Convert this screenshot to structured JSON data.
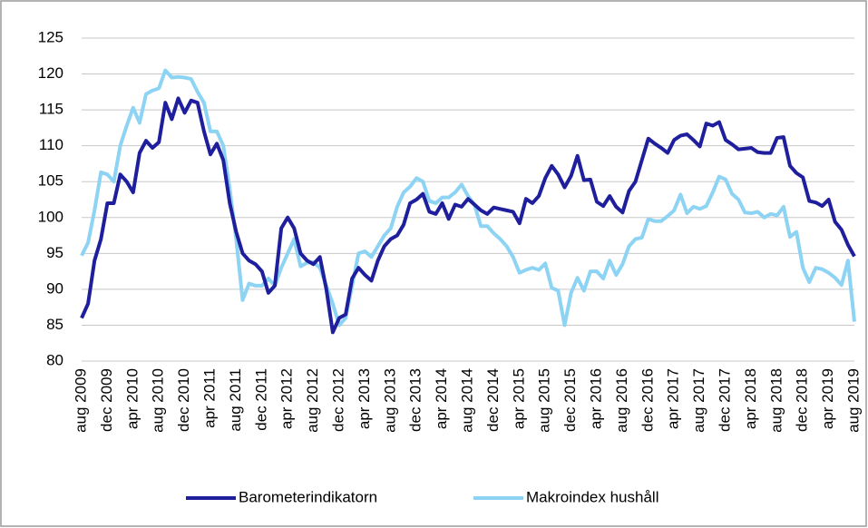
{
  "chart_data": {
    "type": "line",
    "categories": [
      "aug 2009",
      null,
      null,
      null,
      "dec 2009",
      null,
      null,
      null,
      "apr 2010",
      null,
      null,
      null,
      "aug 2010",
      null,
      null,
      null,
      "dec 2010",
      null,
      null,
      null,
      "apr 2011",
      null,
      null,
      null,
      "aug 2011",
      null,
      null,
      null,
      "dec 2011",
      null,
      null,
      null,
      "apr 2012",
      null,
      null,
      null,
      "aug 2012",
      null,
      null,
      null,
      "dec 2012",
      null,
      null,
      null,
      "apr 2013",
      null,
      null,
      null,
      "aug 2013",
      null,
      null,
      null,
      "dec 2013",
      null,
      null,
      null,
      "apr 2014",
      null,
      null,
      null,
      "aug 2014",
      null,
      null,
      null,
      "dec 2014",
      null,
      null,
      null,
      "apr 2015",
      null,
      null,
      null,
      "aug 2015",
      null,
      null,
      null,
      "dec 2015",
      null,
      null,
      null,
      "apr 2016",
      null,
      null,
      null,
      "aug 2016",
      null,
      null,
      null,
      "dec 2016",
      null,
      null,
      null,
      "apr 2017",
      null,
      null,
      null,
      "aug 2017",
      null,
      null,
      null,
      "dec 2017",
      null,
      null,
      null,
      "apr 2018",
      null,
      null,
      null,
      "aug 2018",
      null,
      null,
      null,
      "dec 2018",
      null,
      null,
      null,
      "apr 2019",
      null,
      null,
      null,
      "aug 2019"
    ],
    "series": [
      {
        "name": "Barometerindikatorn",
        "color": "#1f1f9e",
        "values": [
          86,
          88,
          94,
          97,
          102,
          102,
          106,
          105,
          103.5,
          109,
          110.7,
          109.7,
          110.5,
          116,
          113.7,
          116.6,
          114.6,
          116.3,
          116,
          112,
          108.8,
          110.3,
          108,
          102,
          98,
          95,
          94,
          93.5,
          92.5,
          89.5,
          90.5,
          98.5,
          100,
          98.5,
          95,
          94,
          93.5,
          94.5,
          90,
          84,
          86,
          86.5,
          91.5,
          93,
          92,
          91.2,
          94,
          96,
          97,
          97.5,
          99,
          102,
          102.5,
          103.3,
          100.8,
          100.5,
          102,
          99.8,
          101.8,
          101.5,
          102.6,
          101.8,
          101,
          100.5,
          101.4,
          101.2,
          101,
          100.8,
          99.2,
          102.6,
          102,
          103,
          105.5,
          107.2,
          106,
          104.2,
          105.8,
          108.6,
          105.2,
          105.3,
          102.2,
          101.6,
          103,
          101.5,
          100.7,
          103.7,
          105,
          108,
          111,
          110.3,
          109.7,
          109,
          110.8,
          111.4,
          111.6,
          110.8,
          109.9,
          113.1,
          112.8,
          113.3,
          110.8,
          110.2,
          109.5,
          109.6,
          109.7,
          109.1,
          109,
          109,
          111.1,
          111.2,
          107.2,
          106.2,
          105.6,
          102.3,
          102.1,
          101.6,
          102.5,
          99.4,
          98.3,
          96.2,
          94.6
        ]
      },
      {
        "name": "Makroindex hushåll",
        "color": "#8dd3f3",
        "values": [
          94.7,
          96.5,
          101,
          106.3,
          106,
          105,
          110,
          112.8,
          115.3,
          113.2,
          117.2,
          117.7,
          118,
          120.5,
          119.5,
          119.6,
          119.5,
          119.3,
          117.5,
          116,
          112,
          112,
          110,
          104,
          97,
          88.5,
          90.8,
          90.5,
          90.5,
          91.5,
          90.5,
          93,
          95,
          97,
          93.2,
          93.7,
          93.8,
          93,
          90.5,
          88,
          85,
          86,
          90.5,
          95,
          95.3,
          94.5,
          96,
          97.5,
          98.5,
          101.5,
          103.5,
          104.3,
          105.5,
          105,
          102.3,
          102,
          102.8,
          102.8,
          103.5,
          104.6,
          103,
          101.8,
          98.8,
          98.8,
          97.8,
          97,
          96,
          94.5,
          92.3,
          92.7,
          93,
          92.7,
          93.6,
          90.2,
          89.8,
          85,
          89.5,
          91.6,
          89.8,
          92.5,
          92.5,
          91.5,
          94,
          92,
          93.5,
          96,
          97,
          97.2,
          99.8,
          99.5,
          99.5,
          100.2,
          101,
          103.2,
          100.6,
          101.5,
          101.2,
          101.6,
          103.5,
          105.7,
          105.3,
          103.3,
          102.5,
          100.7,
          100.6,
          100.8,
          100,
          100.5,
          100.3,
          101.5,
          97.3,
          98,
          93,
          91,
          93,
          92.8,
          92.3,
          91.6,
          90.6,
          94,
          85.5
        ]
      }
    ],
    "ylim": [
      80,
      125
    ],
    "yticks": [
      80,
      85,
      90,
      95,
      100,
      105,
      110,
      115,
      120,
      125
    ],
    "grid": true,
    "legend": "bottom"
  }
}
